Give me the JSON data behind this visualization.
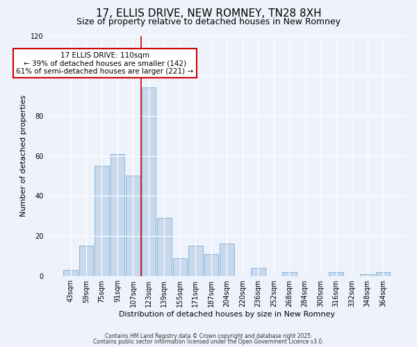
{
  "title": "17, ELLIS DRIVE, NEW ROMNEY, TN28 8XH",
  "subtitle": "Size of property relative to detached houses in New Romney",
  "xlabel": "Distribution of detached houses by size in New Romney",
  "ylabel": "Number of detached properties",
  "bar_labels": [
    "43sqm",
    "59sqm",
    "75sqm",
    "91sqm",
    "107sqm",
    "123sqm",
    "139sqm",
    "155sqm",
    "171sqm",
    "187sqm",
    "204sqm",
    "220sqm",
    "236sqm",
    "252sqm",
    "268sqm",
    "284sqm",
    "300sqm",
    "316sqm",
    "332sqm",
    "348sqm",
    "364sqm"
  ],
  "bar_values": [
    3,
    15,
    55,
    61,
    50,
    94,
    29,
    9,
    15,
    11,
    16,
    0,
    4,
    0,
    2,
    0,
    0,
    2,
    0,
    1,
    2
  ],
  "bar_color": "#c8d9ee",
  "bar_edge_color": "#7aadd4",
  "vline_color": "#cc0000",
  "vline_x_index": 4.5,
  "annotation_title": "17 ELLIS DRIVE: 110sqm",
  "annotation_line1": "← 39% of detached houses are smaller (142)",
  "annotation_line2": "61% of semi-detached houses are larger (221) →",
  "annotation_box_color": "#ffffff",
  "annotation_box_edge": "#cc0000",
  "ylim": [
    0,
    120
  ],
  "yticks": [
    0,
    20,
    40,
    60,
    80,
    100,
    120
  ],
  "footnote1": "Contains HM Land Registry data © Crown copyright and database right 2025.",
  "footnote2": "Contains public sector information licensed under the Open Government Licence v3.0.",
  "bg_color": "#eef2fb",
  "grid_color": "#ffffff",
  "title_fontsize": 11,
  "subtitle_fontsize": 9,
  "xlabel_fontsize": 8,
  "ylabel_fontsize": 8,
  "tick_fontsize": 7,
  "annot_fontsize": 7.5,
  "footnote_fontsize": 5.5
}
